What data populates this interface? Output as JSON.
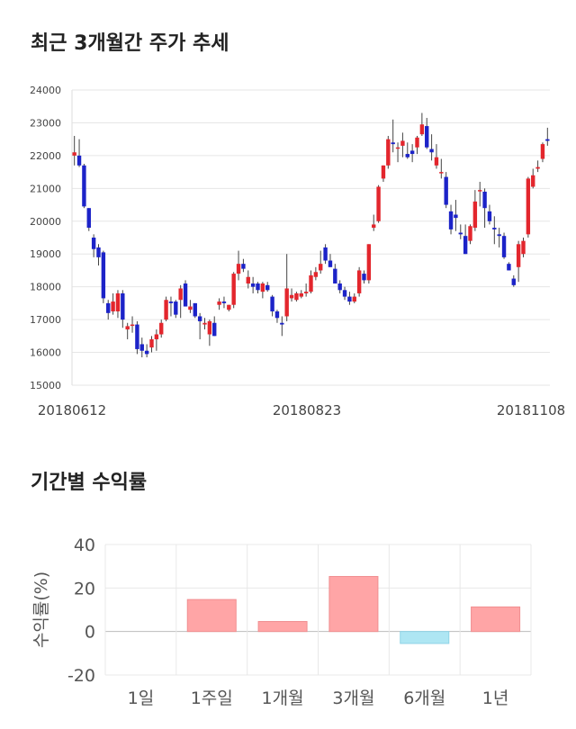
{
  "sections": {
    "price_title": "최근 3개월간 주가 추세",
    "returns_title": "기간별 수익률"
  },
  "chart_data": [
    {
      "type": "candlestick",
      "title": "최근 3개월간 주가 추세",
      "ylim": [
        15000,
        24000
      ],
      "y_ticks": [
        15000,
        16000,
        17000,
        18000,
        19000,
        20000,
        21000,
        22000,
        23000,
        24000
      ],
      "x_tick_labels": [
        "20180612",
        "20180823",
        "20181108"
      ],
      "colors": {
        "up": "#e3262d",
        "down": "#1c23c8",
        "wick": "#444444",
        "grid": "#e6e6e6"
      },
      "candles": [
        [
          22000,
          22600,
          21700,
          22100
        ],
        [
          22000,
          22500,
          21650,
          21700
        ],
        [
          21700,
          21750,
          20400,
          20450
        ],
        [
          20400,
          20400,
          19700,
          19800
        ],
        [
          19500,
          19600,
          18900,
          19150
        ],
        [
          19200,
          19300,
          18650,
          18900
        ],
        [
          19050,
          19100,
          17500,
          17650
        ],
        [
          17500,
          17600,
          17000,
          17200
        ],
        [
          17250,
          17800,
          17150,
          17550
        ],
        [
          17250,
          17900,
          17050,
          17800
        ],
        [
          17800,
          17900,
          16750,
          17000
        ],
        [
          16700,
          16900,
          16400,
          16800
        ],
        [
          16850,
          17100,
          16600,
          16850
        ],
        [
          16850,
          16950,
          15950,
          16100
        ],
        [
          16250,
          16450,
          15850,
          16050
        ],
        [
          16050,
          16250,
          15850,
          15950
        ],
        [
          16150,
          16500,
          16000,
          16400
        ],
        [
          16400,
          16700,
          16050,
          16550
        ],
        [
          16550,
          17000,
          16450,
          16900
        ],
        [
          17000,
          17700,
          16950,
          17600
        ],
        [
          17550,
          17700,
          17100,
          17500
        ],
        [
          17550,
          17600,
          17050,
          17150
        ],
        [
          17600,
          18050,
          17050,
          17950
        ],
        [
          18100,
          18200,
          17400,
          17400
        ],
        [
          17300,
          17600,
          17200,
          17400
        ],
        [
          17500,
          17500,
          17050,
          17100
        ],
        [
          17100,
          17200,
          16400,
          16950
        ],
        [
          16850,
          17050,
          16700,
          16900
        ],
        [
          16550,
          17000,
          16200,
          16950
        ],
        [
          16900,
          17100,
          16500,
          16500
        ],
        [
          17450,
          17650,
          17300,
          17550
        ],
        [
          17550,
          17700,
          17350,
          17500
        ],
        [
          17300,
          17450,
          17250,
          17450
        ],
        [
          17450,
          18450,
          17350,
          18400
        ],
        [
          18400,
          19100,
          18200,
          18700
        ],
        [
          18700,
          18850,
          18450,
          18550
        ],
        [
          18100,
          18500,
          17950,
          18300
        ],
        [
          18100,
          18300,
          17800,
          18000
        ],
        [
          18100,
          18150,
          17800,
          17900
        ],
        [
          17850,
          18150,
          17650,
          18100
        ],
        [
          18050,
          18150,
          17850,
          17900
        ],
        [
          17700,
          17750,
          17100,
          17250
        ],
        [
          17250,
          17300,
          16900,
          17050
        ],
        [
          16900,
          17100,
          16500,
          16850
        ],
        [
          17100,
          19000,
          16950,
          17950
        ],
        [
          17650,
          17950,
          17550,
          17750
        ],
        [
          17600,
          17850,
          17550,
          17800
        ],
        [
          17700,
          17900,
          17650,
          17800
        ],
        [
          17800,
          18100,
          17700,
          17850
        ],
        [
          17850,
          18500,
          17800,
          18350
        ],
        [
          18300,
          18600,
          18200,
          18450
        ],
        [
          18500,
          19100,
          18400,
          18700
        ],
        [
          19200,
          19300,
          18700,
          18800
        ],
        [
          18800,
          19000,
          18600,
          18600
        ],
        [
          18550,
          18700,
          18100,
          18100
        ],
        [
          18100,
          18200,
          17800,
          17900
        ],
        [
          17900,
          18000,
          17600,
          17700
        ],
        [
          17700,
          17850,
          17450,
          17550
        ],
        [
          17550,
          17800,
          17500,
          17700
        ],
        [
          17800,
          18600,
          17700,
          18500
        ],
        [
          18400,
          18500,
          18100,
          18200
        ],
        [
          18200,
          19300,
          18100,
          19300
        ],
        [
          19800,
          20200,
          19700,
          19900
        ],
        [
          20000,
          21100,
          19950,
          21050
        ],
        [
          21300,
          21700,
          21200,
          21700
        ],
        [
          21700,
          22600,
          21600,
          22500
        ],
        [
          22400,
          23100,
          22100,
          22350
        ],
        [
          22250,
          22400,
          21800,
          22250
        ],
        [
          22300,
          22700,
          21950,
          22450
        ],
        [
          22050,
          22400,
          21900,
          21950
        ],
        [
          22150,
          22350,
          21800,
          22050
        ],
        [
          22250,
          22600,
          22050,
          22550
        ],
        [
          22650,
          23300,
          22600,
          22950
        ],
        [
          22900,
          23150,
          22200,
          22250
        ],
        [
          22200,
          22650,
          21850,
          22100
        ],
        [
          21700,
          22350,
          21600,
          21950
        ],
        [
          21500,
          21900,
          21300,
          21500
        ],
        [
          21350,
          21500,
          20400,
          20500
        ],
        [
          20300,
          20500,
          19600,
          19750
        ],
        [
          20200,
          20650,
          19700,
          20100
        ],
        [
          19650,
          19900,
          19450,
          19600
        ],
        [
          19550,
          19900,
          19000,
          19000
        ],
        [
          19400,
          19900,
          19300,
          19850
        ],
        [
          19800,
          20950,
          19700,
          20600
        ],
        [
          20950,
          21200,
          20450,
          20950
        ],
        [
          20900,
          21000,
          19800,
          20400
        ],
        [
          20300,
          20500,
          19900,
          20000
        ],
        [
          19800,
          20150,
          19300,
          19750
        ],
        [
          19600,
          19800,
          19200,
          19550
        ],
        [
          19550,
          19650,
          18850,
          18900
        ],
        [
          18700,
          18750,
          18500,
          18500
        ],
        [
          18250,
          18350,
          18000,
          18050
        ],
        [
          18600,
          19400,
          18150,
          19300
        ],
        [
          19000,
          19500,
          18900,
          19400
        ],
        [
          19600,
          21350,
          19500,
          21300
        ],
        [
          21050,
          21600,
          21000,
          21400
        ],
        [
          21600,
          21850,
          21500,
          21650
        ],
        [
          21900,
          22400,
          21800,
          22350
        ],
        [
          22500,
          22850,
          22300,
          22450
        ]
      ]
    },
    {
      "type": "bar",
      "title": "기간별 수익률",
      "ylabel": "수익률(%)",
      "ylim": [
        -20,
        40
      ],
      "y_ticks": [
        -20,
        0,
        20,
        40
      ],
      "categories": [
        "1일",
        "1주일",
        "1개월",
        "3개월",
        "6개월",
        "1년"
      ],
      "values": [
        0,
        14.7,
        4.6,
        25.3,
        -5.5,
        11.3
      ],
      "colors": {
        "positive": "#ffa5a6",
        "negative": "#aee6f3"
      }
    }
  ]
}
